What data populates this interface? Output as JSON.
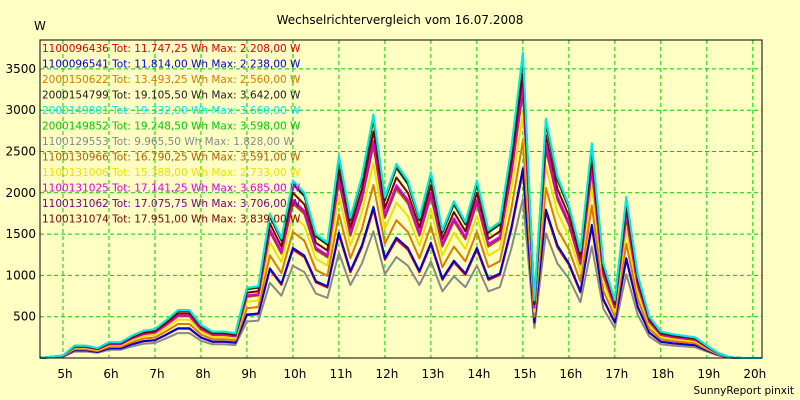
{
  "chart_data": {
    "type": "line",
    "title": "Wechselrichtervergleich vom 16.07.2008",
    "ylabel": "W",
    "xlabel": "",
    "credit": "SunnyReport pinxit",
    "ylim": [
      0,
      3850
    ],
    "xlim": [
      4.5,
      20.2
    ],
    "grid": true,
    "legend_position": "top-left",
    "x_ticks": [
      5,
      6,
      7,
      8,
      9,
      10,
      11,
      12,
      13,
      14,
      15,
      16,
      17,
      18,
      19,
      20
    ],
    "x_tick_labels": [
      "5h",
      "6h",
      "7h",
      "8h",
      "9h",
      "10h",
      "11h",
      "12h",
      "13h",
      "14h",
      "15h",
      "16h",
      "17h",
      "18h",
      "19h",
      "20h"
    ],
    "y_ticks": [
      500,
      1000,
      1500,
      2000,
      2500,
      3000,
      3500
    ],
    "y_tick_labels": [
      "500",
      "1000",
      "1500",
      "2000",
      "2500",
      "3000",
      "3500"
    ],
    "x": [
      4.5,
      5.0,
      5.25,
      5.5,
      5.75,
      6.0,
      6.25,
      6.5,
      6.75,
      7.0,
      7.25,
      7.5,
      7.75,
      8.0,
      8.25,
      8.5,
      8.75,
      9.0,
      9.25,
      9.5,
      9.75,
      10.0,
      10.25,
      10.5,
      10.75,
      11.0,
      11.25,
      11.5,
      11.75,
      12.0,
      12.25,
      12.5,
      12.75,
      13.0,
      13.25,
      13.5,
      13.75,
      14.0,
      14.25,
      14.5,
      14.75,
      15.0,
      15.25,
      15.5,
      15.75,
      16.0,
      16.25,
      16.5,
      16.75,
      17.0,
      17.25,
      17.5,
      17.75,
      18.0,
      18.25,
      18.5,
      18.75,
      19.0,
      19.25,
      19.5,
      19.75,
      20.0,
      20.2
    ],
    "reference_profile": [
      0,
      30,
      150,
      150,
      120,
      190,
      190,
      270,
      330,
      350,
      460,
      580,
      580,
      400,
      320,
      320,
      300,
      850,
      870,
      1750,
      1450,
      2150,
      2000,
      1500,
      1400,
      2450,
      1700,
      2200,
      2950,
      1950,
      2350,
      2150,
      1700,
      2250,
      1550,
      1900,
      1650,
      2150,
      1550,
      1650,
      2550,
      3700,
      700,
      2900,
      2200,
      1850,
      1300,
      2600,
      1150,
      700,
      1950,
      1000,
      500,
      320,
      290,
      270,
      250,
      150,
      60,
      10,
      0,
      0,
      0
    ],
    "series": [
      {
        "id": "1100096436",
        "label": "1100096436 Tot: 11.747,25 Wh Max: 2.208,00 W",
        "color": "#e00000",
        "scale": 0.61
      },
      {
        "id": "1100096541",
        "label": "1100096541 Tot: 11.814,00 Wh Max: 2.238,00 W",
        "color": "#0000d8",
        "scale": 0.62
      },
      {
        "id": "2000150622",
        "label": "2000150622 Tot: 13.493,25 Wh Max: 2.560,00 W",
        "color": "#e07800",
        "scale": 0.71
      },
      {
        "id": "2000154799",
        "label": "2000154799 Tot: 19.105,50 Wh Max: 3.642,00 W",
        "color": "#202020",
        "scale": 0.98
      },
      {
        "id": "2000149801",
        "label": "2000149801 Tot: 19.332,00 Wh Max: 3.660,00 W",
        "color": "#00e8e8",
        "scale": 1.0
      },
      {
        "id": "2000149852",
        "label": "2000149852 Tot: 19.248,50 Wh Max: 3.598,00 W",
        "color": "#00c800",
        "scale": 0.995
      },
      {
        "id": "1100129553",
        "label": "1100129553 Tot: 9.965,50 Wh Max: 1.828,00 W",
        "color": "#888888",
        "scale": 0.52
      },
      {
        "id": "1100130966",
        "label": "1100130966 Tot: 16.790,25 Wh Max: 3.591,00 W",
        "color": "#b06000",
        "scale": 0.87
      },
      {
        "id": "1100131006",
        "label": "1100131006 Tot: 15.388,00 Wh Max: 2.733,00 W",
        "color": "#f0e000",
        "scale": 0.8
      },
      {
        "id": "1100131025",
        "label": "1100131025 Tot: 17.141,25 Wh Max: 3.685,00 W",
        "color": "#e000e0",
        "scale": 0.89
      },
      {
        "id": "1100131062",
        "label": "1100131062 Tot: 17.075,75 Wh Max: 3.706,00 W",
        "color": "#800080",
        "scale": 0.885
      },
      {
        "id": "1100131074",
        "label": "1100131074 Tot: 17.951,00 Wh Max: 3.839,00 W",
        "color": "#800000",
        "scale": 0.93
      }
    ]
  }
}
